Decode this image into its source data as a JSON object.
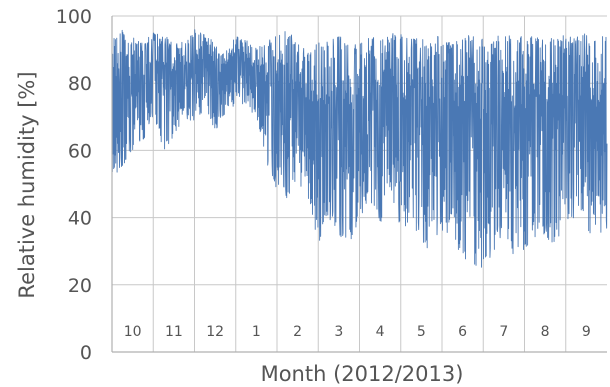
{
  "chart_data": {
    "type": "line",
    "xlabel": "Month (2012/2013)",
    "ylabel": "Relative humidity [%]",
    "ylim": [
      0,
      100
    ],
    "yticks": [
      0,
      20,
      40,
      60,
      80,
      100
    ],
    "months": [
      "10",
      "11",
      "12",
      "1",
      "2",
      "3",
      "4",
      "5",
      "6",
      "7",
      "8",
      "9"
    ],
    "grid": true,
    "legend": "none",
    "series": [
      {
        "color": "#4a78b4",
        "x_unit": "month index (0 = start of October 2012)",
        "x": [
          0.0,
          0.25,
          0.5,
          0.75,
          1.0,
          1.25,
          1.5,
          1.75,
          2.0,
          2.25,
          2.5,
          2.75,
          3.0,
          3.25,
          3.5,
          3.75,
          4.0,
          4.25,
          4.5,
          4.75,
          5.0,
          5.25,
          5.5,
          5.75,
          6.0,
          6.25,
          6.5,
          6.75,
          7.0,
          7.25,
          7.5,
          7.75,
          8.0,
          8.25,
          8.5,
          8.75,
          9.0,
          9.25,
          9.5,
          9.75,
          10.0,
          10.25,
          10.5,
          10.75,
          11.0,
          11.25,
          11.5,
          11.75,
          12.0
        ],
        "y_max": [
          95,
          96,
          94,
          92,
          95,
          94,
          93,
          92,
          96,
          95,
          92,
          90,
          94,
          93,
          91,
          92,
          95,
          96,
          92,
          90,
          94,
          92,
          95,
          93,
          92,
          94,
          93,
          95,
          96,
          94,
          93,
          95,
          94,
          92,
          95,
          94,
          93,
          94,
          95,
          94,
          95,
          94,
          93,
          94,
          95,
          94,
          95,
          94,
          95
        ],
        "y_min": [
          50,
          55,
          60,
          62,
          68,
          60,
          64,
          70,
          68,
          72,
          66,
          70,
          74,
          72,
          70,
          56,
          48,
          44,
          50,
          46,
          32,
          40,
          35,
          28,
          40,
          45,
          38,
          48,
          34,
          40,
          32,
          30,
          36,
          34,
          28,
          26,
          24,
          30,
          35,
          28,
          30,
          32,
          35,
          30,
          38,
          40,
          35,
          33,
          36
        ]
      }
    ]
  }
}
